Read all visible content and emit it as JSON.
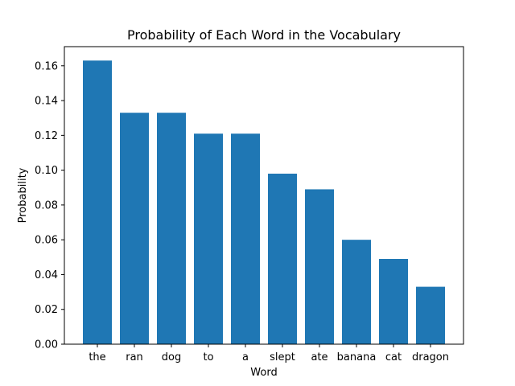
{
  "chart_data": {
    "type": "bar",
    "title": "Probability of Each Word in the Vocabulary",
    "xlabel": "Word",
    "ylabel": "Probability",
    "categories": [
      "the",
      "ran",
      "dog",
      "to",
      "a",
      "slept",
      "ate",
      "banana",
      "cat",
      "dragon"
    ],
    "values": [
      0.163,
      0.133,
      0.133,
      0.121,
      0.121,
      0.098,
      0.089,
      0.06,
      0.049,
      0.033
    ],
    "ylim": [
      0,
      0.171
    ],
    "yticks": [
      "0.00",
      "0.02",
      "0.04",
      "0.06",
      "0.08",
      "0.10",
      "0.12",
      "0.14",
      "0.16"
    ],
    "grid": false,
    "legend": "none",
    "bar_color": "#1f77b4"
  }
}
